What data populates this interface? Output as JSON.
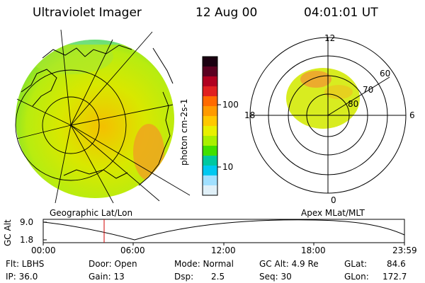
{
  "header": {
    "instrument": "Ultraviolet Imager",
    "date": "12 Aug 00",
    "time": "04:01:01 UT"
  },
  "colorbar": {
    "unit_label": "photon cm-2s-1",
    "tick_labels": [
      "100",
      "10"
    ],
    "colors": [
      "#1a0010",
      "#5a0020",
      "#b00020",
      "#e02020",
      "#ff6a00",
      "#ff9a00",
      "#ffc800",
      "#e8f000",
      "#a8f000",
      "#40e000",
      "#00c8a0",
      "#00c8f0",
      "#a0e0ff",
      "#e0f0f8"
    ]
  },
  "geo_panel": {
    "label": "Geographic Lat/Lon"
  },
  "apex_panel": {
    "label": "Apex  MLat/MLT",
    "mlt_labels": [
      "12",
      "18",
      "6",
      "0"
    ],
    "mlat_labels": [
      "60",
      "70",
      "80"
    ]
  },
  "timeline": {
    "y_label": "GC Alt",
    "y_ticks": [
      "9.0",
      "1.8"
    ],
    "x_ticks": [
      "00:00",
      "06:00",
      "12:00",
      "18:00",
      "23:59"
    ],
    "current_time_marker": "04:01"
  },
  "params": {
    "flt": "Flt: LBHS",
    "ip": "IP: 36.0",
    "door": "Door: Open",
    "gain": "Gain: 13",
    "mode": "Mode: Normal",
    "dsp_label": "Dsp:",
    "dsp_value": "2.5",
    "gcalt": "GC Alt: 4.9 Re",
    "seq": "Seq: 30",
    "glat_label": "GLat:",
    "glat_value": "84.6",
    "glon_label": "GLon:",
    "glon_value": "172.7"
  }
}
